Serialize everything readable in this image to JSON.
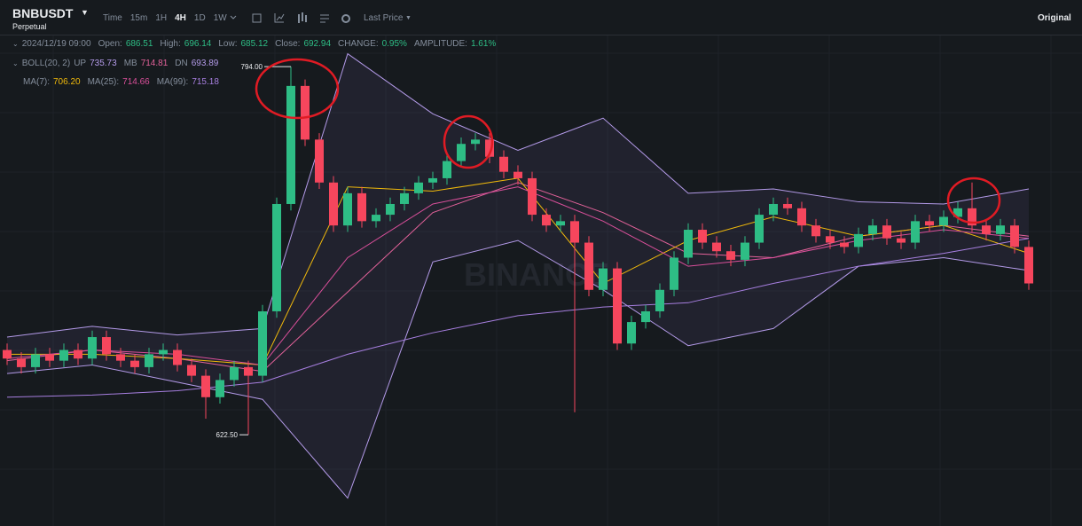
{
  "toolbar": {
    "symbol": "BNBUSDT",
    "subtitle": "Perpetual",
    "intervals": [
      "Time",
      "15m",
      "1H",
      "4H",
      "1D",
      "1W"
    ],
    "active": "4H",
    "price_type": "Last Price",
    "view": "Original"
  },
  "info": {
    "time": "2024/12/19 09:00",
    "ohlc": [
      {
        "label": "Open:",
        "value": "686.51"
      },
      {
        "label": "High:",
        "value": "696.14"
      },
      {
        "label": "Low:",
        "value": "685.12"
      },
      {
        "label": "Close:",
        "value": "692.94"
      },
      {
        "label": "CHANGE:",
        "value": "0.95%"
      },
      {
        "label": "AMPLITUDE:",
        "value": "1.61%"
      }
    ],
    "boll": "BOLL(20, 2)"
  },
  "chart_data": {
    "type": "candlestick",
    "watermark": "BINANCE",
    "ylim": [
      580,
      808.5
    ],
    "up_color": "#2ebd85",
    "down_color": "#f6465d",
    "high_label": "794.00",
    "low_label": "622.50",
    "open": [
      662,
      658,
      654,
      660,
      657,
      662,
      658,
      668,
      660,
      657,
      654,
      660,
      662,
      655,
      650,
      640,
      648,
      654,
      650,
      680,
      730,
      785,
      760,
      740,
      720,
      735,
      722,
      725,
      730,
      735,
      740,
      742,
      750,
      758,
      760,
      752,
      745,
      742,
      725,
      720,
      722,
      712,
      690,
      700,
      665,
      675,
      680,
      690,
      705,
      718,
      712,
      708,
      704,
      712,
      725,
      730,
      728,
      720,
      715,
      712,
      710,
      716,
      720,
      714,
      712,
      722,
      720,
      724,
      728,
      720,
      716,
      720,
      710
    ],
    "high": [
      665,
      661,
      663,
      663,
      665,
      665,
      671,
      671,
      663,
      660,
      663,
      665,
      665,
      658,
      653,
      651,
      657,
      657,
      683,
      733,
      794,
      788,
      763,
      743,
      738,
      738,
      728,
      733,
      738,
      743,
      745,
      753,
      761,
      763,
      763,
      755,
      748,
      745,
      728,
      725,
      725,
      715,
      703,
      703,
      678,
      683,
      693,
      708,
      721,
      721,
      715,
      711,
      715,
      728,
      733,
      733,
      731,
      723,
      718,
      715,
      719,
      723,
      723,
      717,
      725,
      725,
      727,
      731,
      740,
      723,
      723,
      723,
      713
    ],
    "low": [
      655,
      651,
      651,
      654,
      654,
      655,
      655,
      657,
      654,
      651,
      651,
      657,
      652,
      647,
      630,
      637,
      645,
      622.5,
      647,
      677,
      727,
      757,
      737,
      717,
      717,
      719,
      719,
      722,
      727,
      732,
      737,
      739,
      747,
      755,
      749,
      742,
      739,
      722,
      717,
      717,
      633,
      687,
      687,
      662,
      662,
      672,
      677,
      687,
      702,
      709,
      705,
      701,
      701,
      709,
      722,
      725,
      717,
      712,
      709,
      707,
      707,
      713,
      711,
      709,
      709,
      717,
      717,
      721,
      717,
      713,
      713,
      707,
      690
    ],
    "close": [
      658,
      654,
      660,
      657,
      662,
      658,
      668,
      660,
      657,
      654,
      660,
      662,
      655,
      650,
      640,
      648,
      654,
      650,
      680,
      730,
      785,
      760,
      740,
      720,
      735,
      722,
      725,
      730,
      735,
      740,
      742,
      750,
      758,
      760,
      752,
      745,
      742,
      725,
      720,
      722,
      712,
      690,
      700,
      665,
      675,
      680,
      690,
      705,
      718,
      712,
      708,
      704,
      712,
      725,
      730,
      728,
      720,
      715,
      712,
      710,
      716,
      720,
      714,
      712,
      722,
      720,
      724,
      728,
      720,
      716,
      720,
      710,
      693
    ],
    "series": [
      {
        "name": "UP",
        "last_label": "735.73",
        "color": "#b39ae8",
        "x": [
          0,
          6,
          12,
          18,
          24,
          30,
          36,
          42,
          48,
          54,
          60,
          66,
          72
        ],
        "values": [
          668,
          673,
          669,
          672,
          800,
          772,
          755,
          770,
          735,
          737,
          731,
          730,
          737
        ]
      },
      {
        "name": "MB",
        "last_label": "714.81",
        "color": "#e3629a",
        "x": [
          0,
          6,
          12,
          18,
          24,
          30,
          36,
          42,
          48,
          54,
          60,
          66,
          72
        ],
        "values": [
          657,
          662,
          658,
          652,
          689,
          726,
          740,
          726,
          707,
          705,
          715,
          720,
          715
        ]
      },
      {
        "name": "DN",
        "last_label": "693.89",
        "color": "#b39ae8",
        "x": [
          0,
          6,
          12,
          18,
          24,
          30,
          36,
          42,
          48,
          54,
          60,
          66,
          72
        ],
        "values": [
          651,
          655,
          647,
          639,
          593,
          703,
          713,
          690,
          664,
          672,
          701,
          705,
          699
        ]
      },
      {
        "name": "MA(7):",
        "last_label": "706.20",
        "color": "#f0b90b",
        "x": [
          0,
          6,
          12,
          18,
          24,
          30,
          36,
          42,
          48,
          54,
          60,
          66,
          72
        ],
        "values": [
          660,
          660,
          658,
          655,
          738,
          736,
          742,
          693,
          713,
          724,
          715,
          720,
          707
        ]
      },
      {
        "name": "MA(25):",
        "last_label": "714.66",
        "color": "#d94f9a",
        "x": [
          0,
          6,
          12,
          18,
          24,
          30,
          36,
          42,
          48,
          54,
          60,
          66,
          72
        ],
        "values": [
          658,
          662,
          660,
          655,
          705,
          730,
          738,
          722,
          701,
          705,
          713,
          718,
          714
        ]
      },
      {
        "name": "MA(99):",
        "last_label": "715.18",
        "color": "#a77fe0",
        "x": [
          0,
          6,
          12,
          18,
          24,
          30,
          36,
          42,
          48,
          54,
          60,
          66,
          72
        ],
        "values": [
          640,
          641,
          643,
          647,
          660,
          670,
          678,
          682,
          684,
          693,
          701,
          707,
          714
        ]
      }
    ]
  }
}
